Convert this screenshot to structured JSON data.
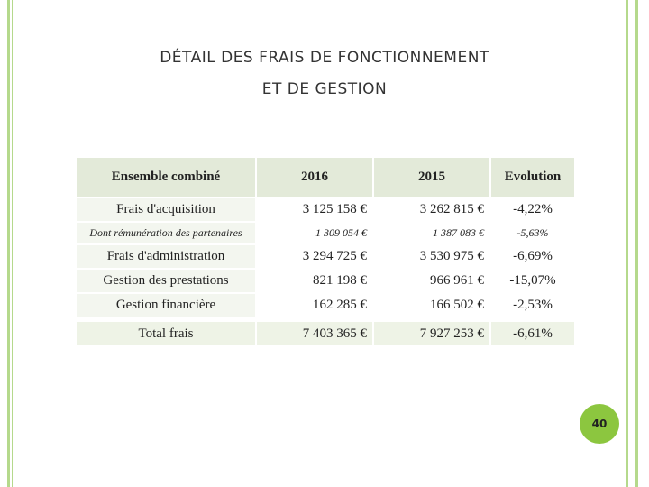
{
  "header": {
    "title": [
      "DÉTAIL DES FRAIS DE FONCTIONNEMENT",
      "ET DE GESTION"
    ]
  },
  "table": {
    "columns": [
      "Ensemble combiné",
      "2016",
      "2015",
      "Evolution"
    ],
    "rows": [
      [
        "Frais d'acquisition",
        "3 125 158 €",
        "3 262 815 €",
        "-4,22%"
      ],
      [
        "Dont rémunération des partenaires",
        "1 309 054 €",
        "1 387 083 €",
        "-5,63%"
      ],
      [
        "Frais d'administration",
        "3 294 725 €",
        "3 530 975 €",
        "-6,69%"
      ],
      [
        "Gestion des prestations",
        "821 198 €",
        "966 961 €",
        "-15,07%"
      ],
      [
        "Gestion financière",
        "162 285 €",
        "166 502 €",
        "-2,53%"
      ]
    ],
    "total": [
      "Total frais",
      "7 403 365 €",
      "7 927 253 €",
      "-6,61%"
    ]
  },
  "footer": {
    "page_number": "40"
  }
}
